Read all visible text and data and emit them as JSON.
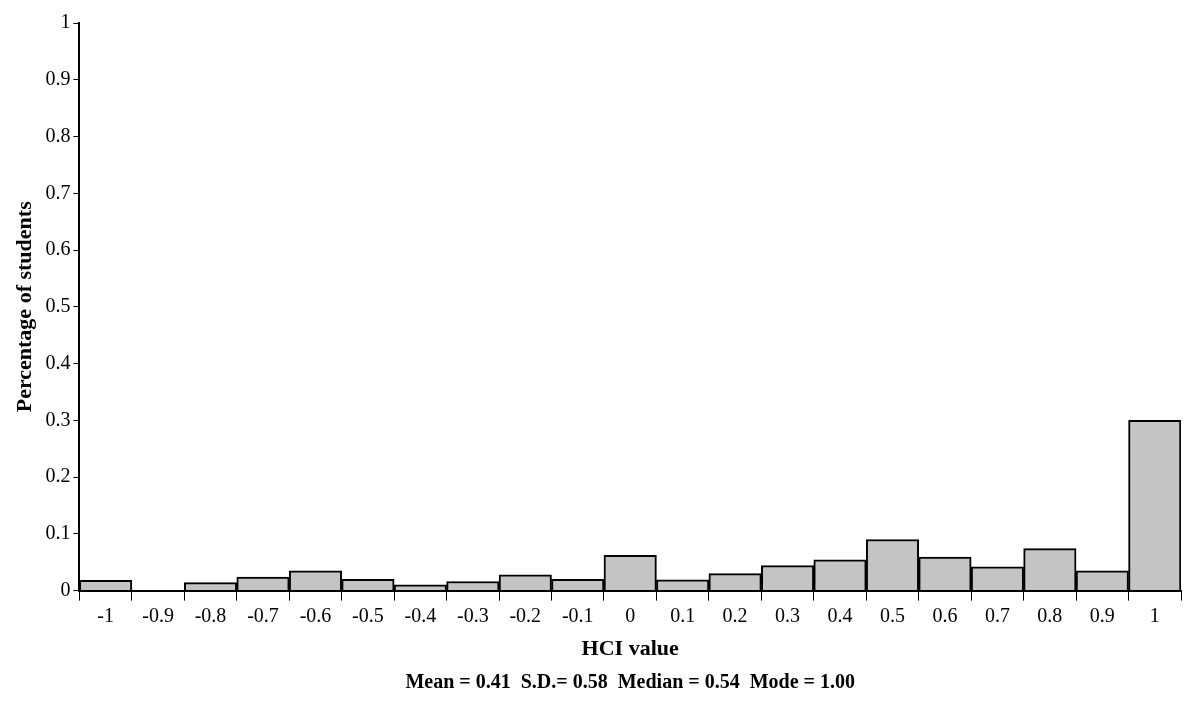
{
  "chart_data": {
    "type": "bar",
    "xlabel": "HCI value",
    "ylabel": "Percentage of students",
    "categories": [
      "-1",
      "-0.9",
      "-0.8",
      "-0.7",
      "-0.6",
      "-0.5",
      "-0.4",
      "-0.3",
      "-0.2",
      "-0.1",
      "0",
      "0.1",
      "0.2",
      "0.3",
      "0.4",
      "0.5",
      "0.6",
      "0.7",
      "0.8",
      "0.9",
      "1"
    ],
    "values": [
      0.018,
      0,
      0.014,
      0.024,
      0.035,
      0.02,
      0.01,
      0.016,
      0.028,
      0.02,
      0.062,
      0.019,
      0.03,
      0.044,
      0.054,
      0.09,
      0.059,
      0.042,
      0.074,
      0.035,
      0.3
    ],
    "color": "#c4c4c4",
    "ylim": [
      0,
      1
    ],
    "yticks": [
      0,
      0.1,
      0.2,
      0.3,
      0.4,
      0.5,
      0.6,
      0.7,
      0.8,
      0.9,
      1
    ],
    "grid": false,
    "legend": false,
    "annotations": [
      "Mean = 0.41  S.D.= 0.58  Median = 0.54  Mode = 1.00"
    ]
  }
}
